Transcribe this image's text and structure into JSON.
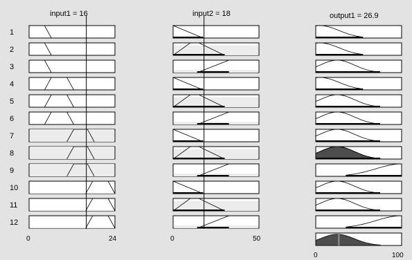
{
  "window": {
    "title": ""
  },
  "inputs": [
    {
      "name": "input1",
      "value": "16",
      "title": "input1 = 16",
      "range": [
        "0",
        "24"
      ]
    },
    {
      "name": "input2",
      "value": "18",
      "title": "input2 = 18",
      "range": [
        "0",
        "50"
      ]
    }
  ],
  "output": {
    "name": "output1",
    "value": "26.9",
    "title": "output1 = 26.9",
    "range": [
      "0",
      "100"
    ]
  },
  "rules": [
    "1",
    "2",
    "3",
    "4",
    "5",
    "6",
    "7",
    "8",
    "9",
    "10",
    "11",
    "12"
  ],
  "colors": {
    "background": "#e3e3e3",
    "plot_bg": "#ffffff",
    "aggregate_fill": "#4d4d4d",
    "fire_fill": "#ececec",
    "line": "#000000"
  }
}
